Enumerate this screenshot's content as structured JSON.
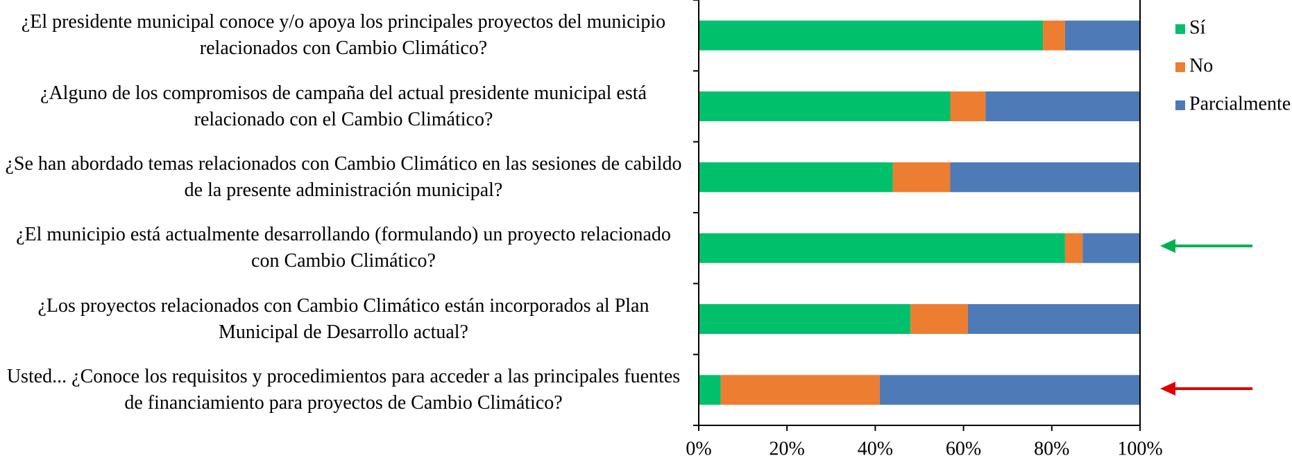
{
  "chart_data": {
    "type": "stacked_barh",
    "categories": [
      "¿El presidente municipal conoce y/o apoya los principales proyectos del municipio relacionados con Cambio Climático?",
      "¿Alguno de los compromisos de campaña del actual presidente municipal está relacionado con el Cambio Climático?",
      "¿Se han abordado temas relacionados con Cambio Climático en las sesiones de cabildo de la presente administración municipal?",
      "¿El municipio está actualmente desarrollando (formulando) un proyecto relacionado con Cambio Climático?",
      "¿Los proyectos relacionados con Cambio Climático están incorporados al Plan Municipal de Desarrollo actual?",
      "Usted... ¿Conoce los requisitos y procedimientos para acceder a las principales fuentes de financiamiento para proyectos de Cambio Climático?"
    ],
    "series": [
      {
        "name": "Sí",
        "color": "#00c06b",
        "values": [
          78,
          57,
          44,
          83,
          48,
          5
        ]
      },
      {
        "name": "No",
        "color": "#ed7d31",
        "values": [
          5,
          8,
          13,
          4,
          13,
          36
        ]
      },
      {
        "name": "Parcialmente",
        "color": "#4e7ab8",
        "values": [
          17,
          35,
          43,
          13,
          39,
          59
        ]
      }
    ],
    "xlim": [
      0,
      100
    ],
    "xticks": [
      {
        "value": 0,
        "label": "0%"
      },
      {
        "value": 20,
        "label": "20%"
      },
      {
        "value": 40,
        "label": "40%"
      },
      {
        "value": 60,
        "label": "60%"
      },
      {
        "value": 80,
        "label": "80%"
      },
      {
        "value": 100,
        "label": "100%"
      }
    ],
    "legend": "right"
  }
}
